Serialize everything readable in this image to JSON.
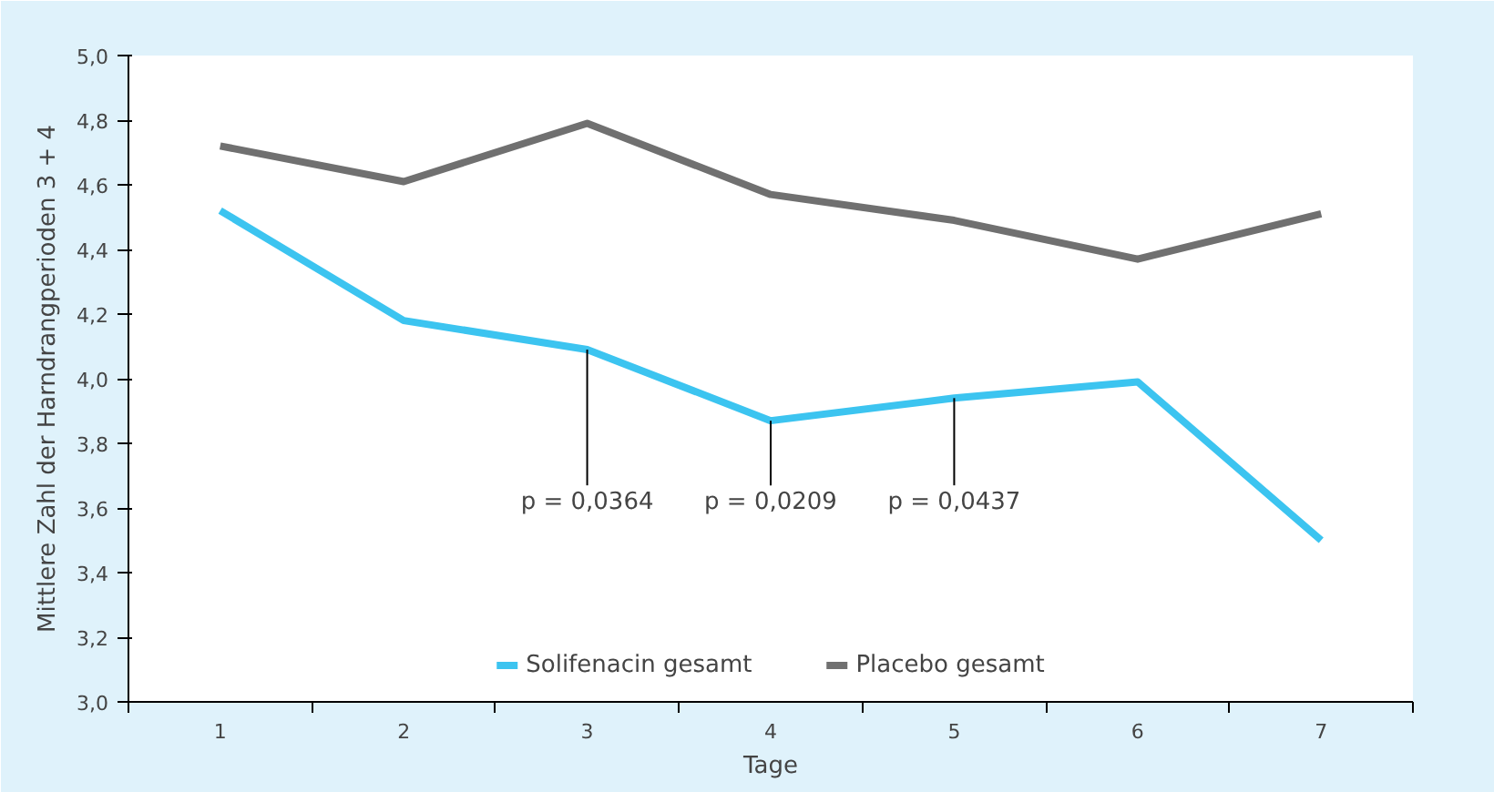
{
  "chart_data": {
    "type": "line",
    "xlabel": "Tage",
    "ylabel": "Mittlere Zahl der Harndrangperioden 3 + 4",
    "categories": [
      "1",
      "2",
      "3",
      "4",
      "5",
      "6",
      "7"
    ],
    "series": [
      {
        "name": "Solifenacin gesamt",
        "color": "#3cc4f0",
        "values": [
          4.52,
          4.18,
          4.09,
          3.87,
          3.94,
          3.99,
          3.5
        ]
      },
      {
        "name": "Placebo gesamt",
        "color": "#707070",
        "values": [
          4.72,
          4.61,
          4.79,
          4.57,
          4.49,
          4.37,
          4.51
        ]
      }
    ],
    "ylim": [
      3.0,
      5.0
    ],
    "yticks": [
      {
        "value": 3.0,
        "label": "3,0"
      },
      {
        "value": 3.2,
        "label": "3,2"
      },
      {
        "value": 3.4,
        "label": "3,4"
      },
      {
        "value": 3.6,
        "label": "3,6"
      },
      {
        "value": 3.8,
        "label": "3,8"
      },
      {
        "value": 4.0,
        "label": "4,0"
      },
      {
        "value": 4.2,
        "label": "4,2"
      },
      {
        "value": 4.4,
        "label": "4,4"
      },
      {
        "value": 4.6,
        "label": "4,6"
      },
      {
        "value": 4.8,
        "label": "4,8"
      },
      {
        "value": 5.0,
        "label": "5,0"
      }
    ],
    "annotations": [
      {
        "text": "p = 0,0364",
        "x": "3",
        "y": 4.09
      },
      {
        "text": "p = 0,0209",
        "x": "4",
        "y": 3.87
      },
      {
        "text": "p = 0,0437",
        "x": "5",
        "y": 3.94
      }
    ],
    "grid": false,
    "legend": "bottom",
    "marker": "none",
    "line_style": "solid"
  }
}
